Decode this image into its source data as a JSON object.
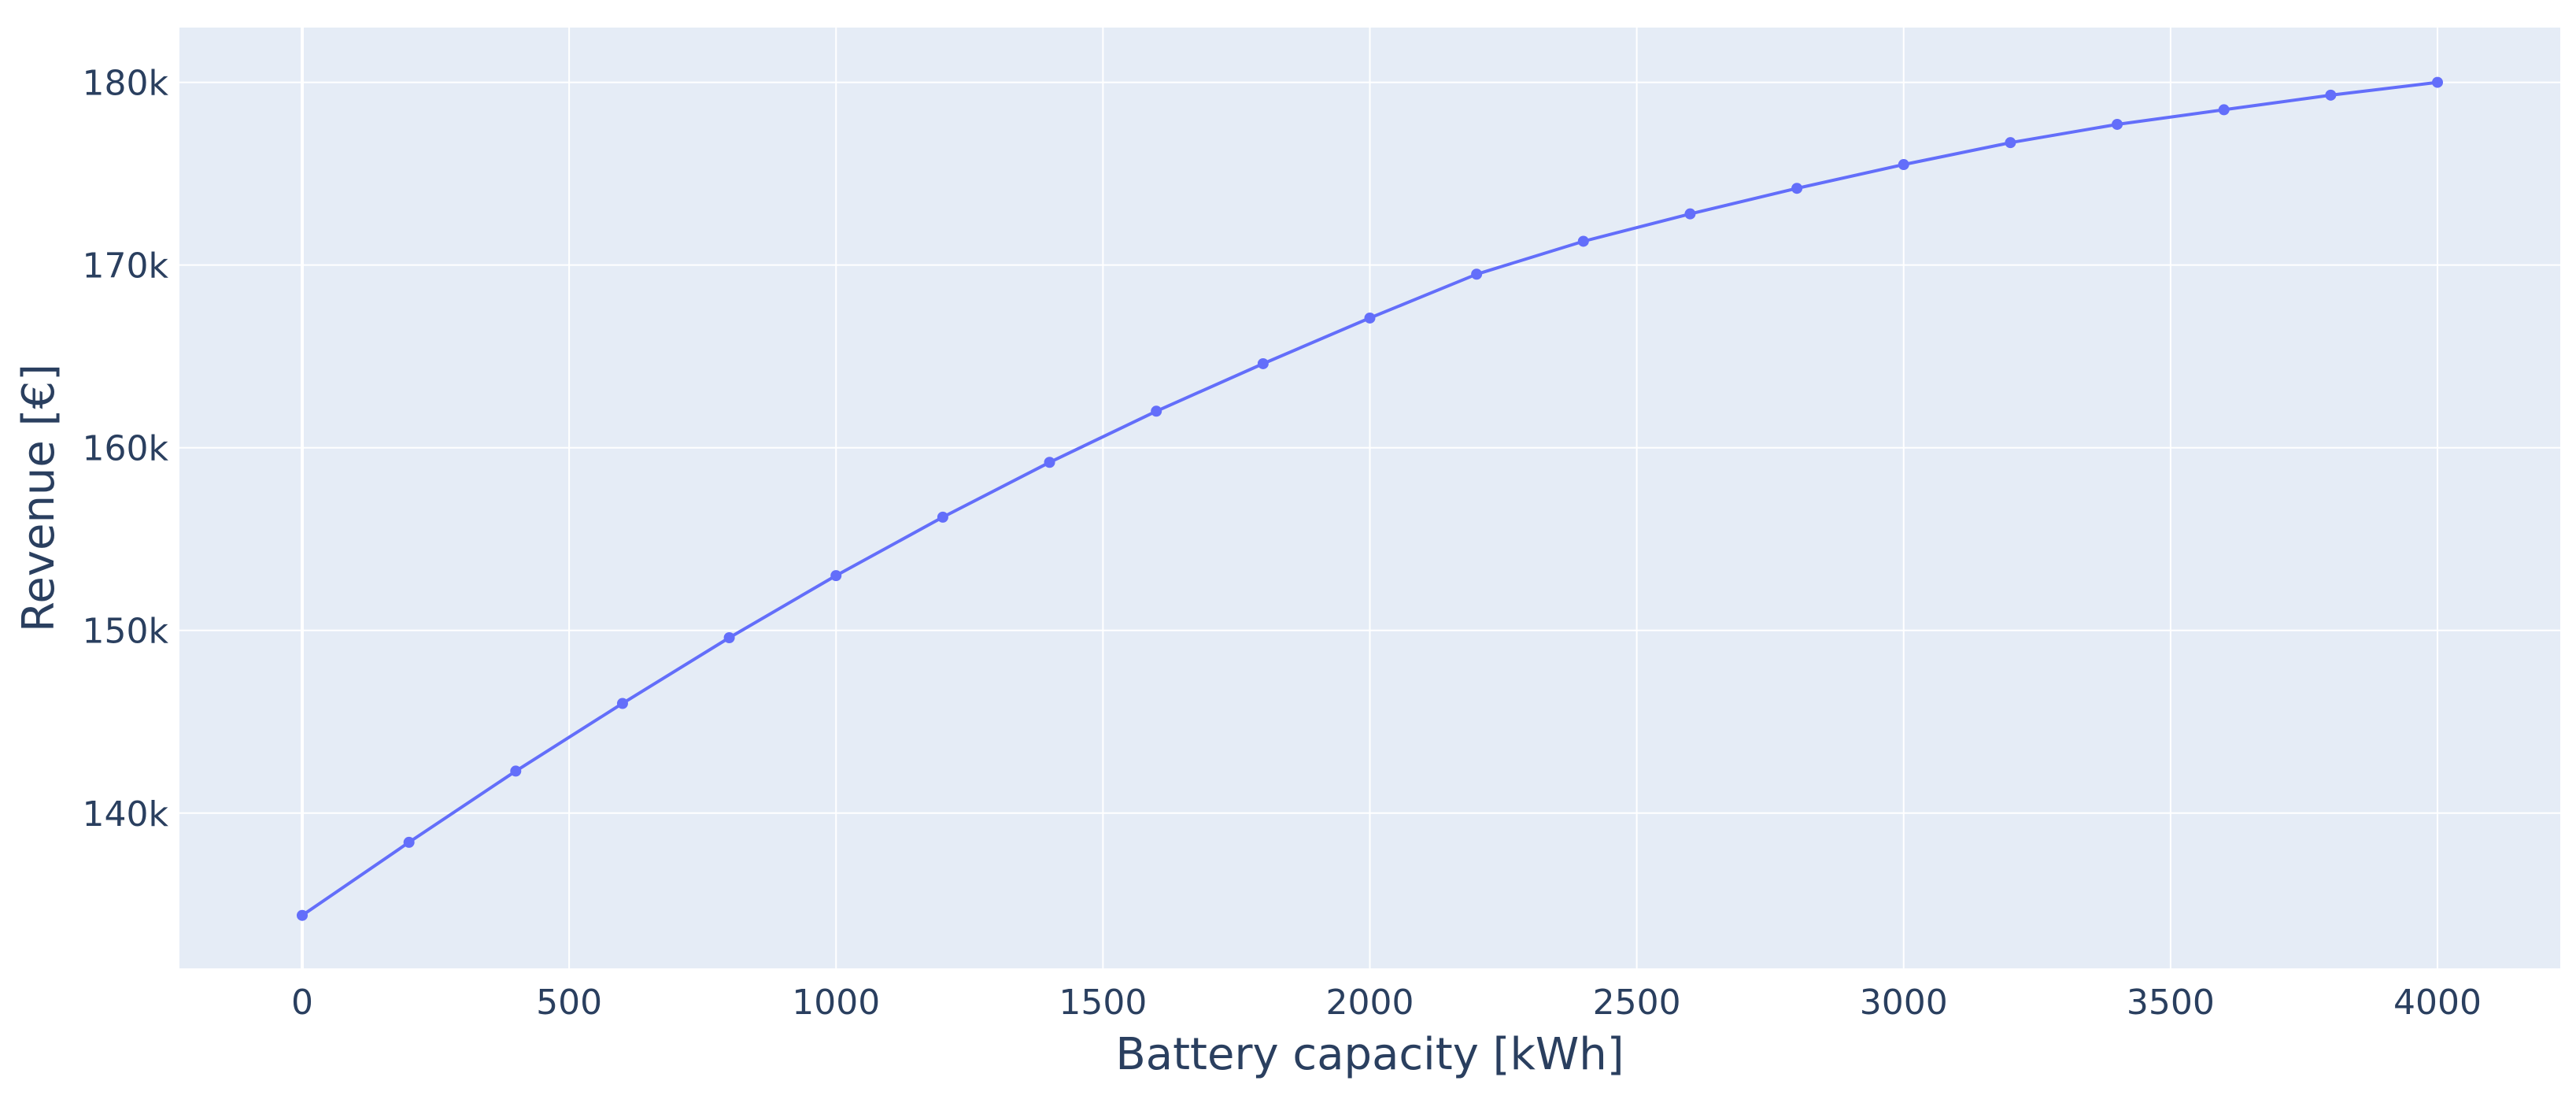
{
  "chart_data": {
    "type": "line",
    "title": "",
    "xlabel": "Battery capacity [kWh]",
    "ylabel": "Revenue [€]",
    "xlim": [
      -230,
      4230
    ],
    "ylim": [
      131500,
      183000
    ],
    "grid": true,
    "x_ticks": [
      0,
      500,
      1000,
      1500,
      2000,
      2500,
      3000,
      3500,
      4000
    ],
    "x_tick_labels": [
      "0",
      "500",
      "1000",
      "1500",
      "2000",
      "2500",
      "3000",
      "3500",
      "4000"
    ],
    "y_ticks": [
      140000,
      150000,
      160000,
      170000,
      180000
    ],
    "y_tick_labels": [
      "140k",
      "150k",
      "160k",
      "170k",
      "180k"
    ],
    "series": [
      {
        "color": "#636efa",
        "x": [
          0,
          200,
          400,
          600,
          800,
          1000,
          1200,
          1400,
          1600,
          1800,
          2000,
          2200,
          2400,
          2600,
          2800,
          3000,
          3200,
          3400,
          3600,
          3800,
          4000
        ],
        "y": [
          134400,
          138400,
          142300,
          146000,
          149600,
          153000,
          156200,
          159200,
          162000,
          164600,
          167100,
          169500,
          171300,
          172800,
          174200,
          175500,
          176700,
          177700,
          178500,
          179300,
          180000
        ]
      }
    ],
    "colors": {
      "plot_bg": "#e5ecf6",
      "grid": "#ffffff",
      "text": "#2a3f5f"
    }
  }
}
